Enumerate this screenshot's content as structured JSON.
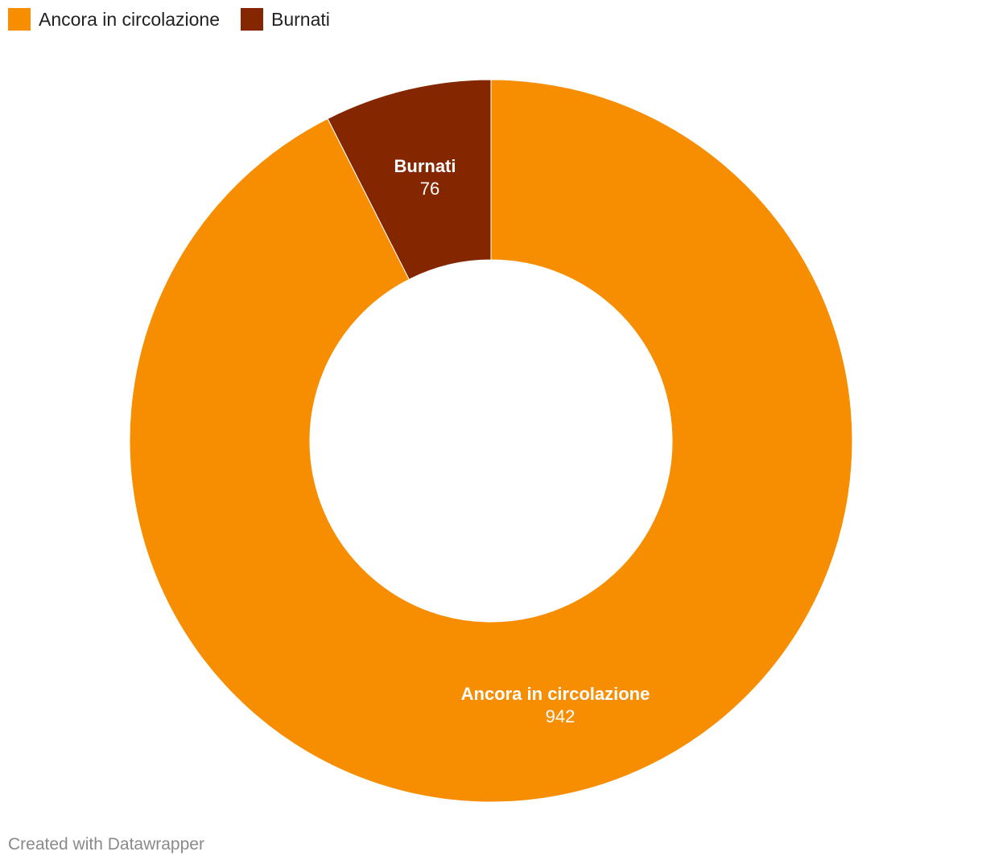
{
  "chart_data": {
    "type": "pie",
    "variant": "donut",
    "categories": [
      "Ancora in circolazione",
      "Burnati"
    ],
    "values": [
      942,
      76
    ],
    "colors": [
      "#f78d00",
      "#842700"
    ],
    "legend": {
      "placement": "top-left",
      "items": [
        {
          "label": "Ancora in circolazione",
          "color": "#f78d00"
        },
        {
          "label": "Burnati",
          "color": "#842700"
        }
      ]
    },
    "slices": [
      {
        "label": "Ancora in circolazione",
        "value": "942",
        "color": "#f78d00"
      },
      {
        "label": "Burnati",
        "value": "76",
        "color": "#842700"
      }
    ]
  },
  "footer": {
    "credit": "Created with Datawrapper"
  }
}
